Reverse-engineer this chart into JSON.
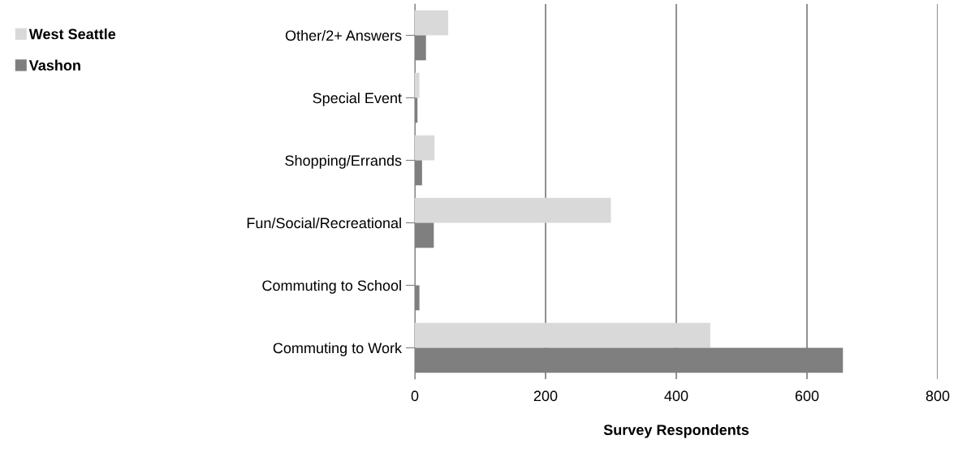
{
  "chart_data": {
    "type": "bar",
    "orientation": "horizontal",
    "xlabel": "Survey Respondents",
    "categories": [
      "Other/2+ Answers",
      "Special Event",
      "Shopping/Errands",
      "Fun/Social/Recreational",
      "Commuting to School",
      "Commuting to Work"
    ],
    "series": [
      {
        "name": "West Seattle",
        "color": "#d9d9d9",
        "values": [
          51,
          7,
          30,
          300,
          null,
          452
        ]
      },
      {
        "name": "Vashon",
        "color": "#7f7f7f",
        "values": [
          17,
          4,
          11,
          29,
          7,
          655
        ]
      }
    ],
    "xlim": [
      0,
      800
    ],
    "xticks": [
      0,
      200,
      400,
      600,
      800
    ],
    "grid": "x",
    "legend": "left"
  }
}
